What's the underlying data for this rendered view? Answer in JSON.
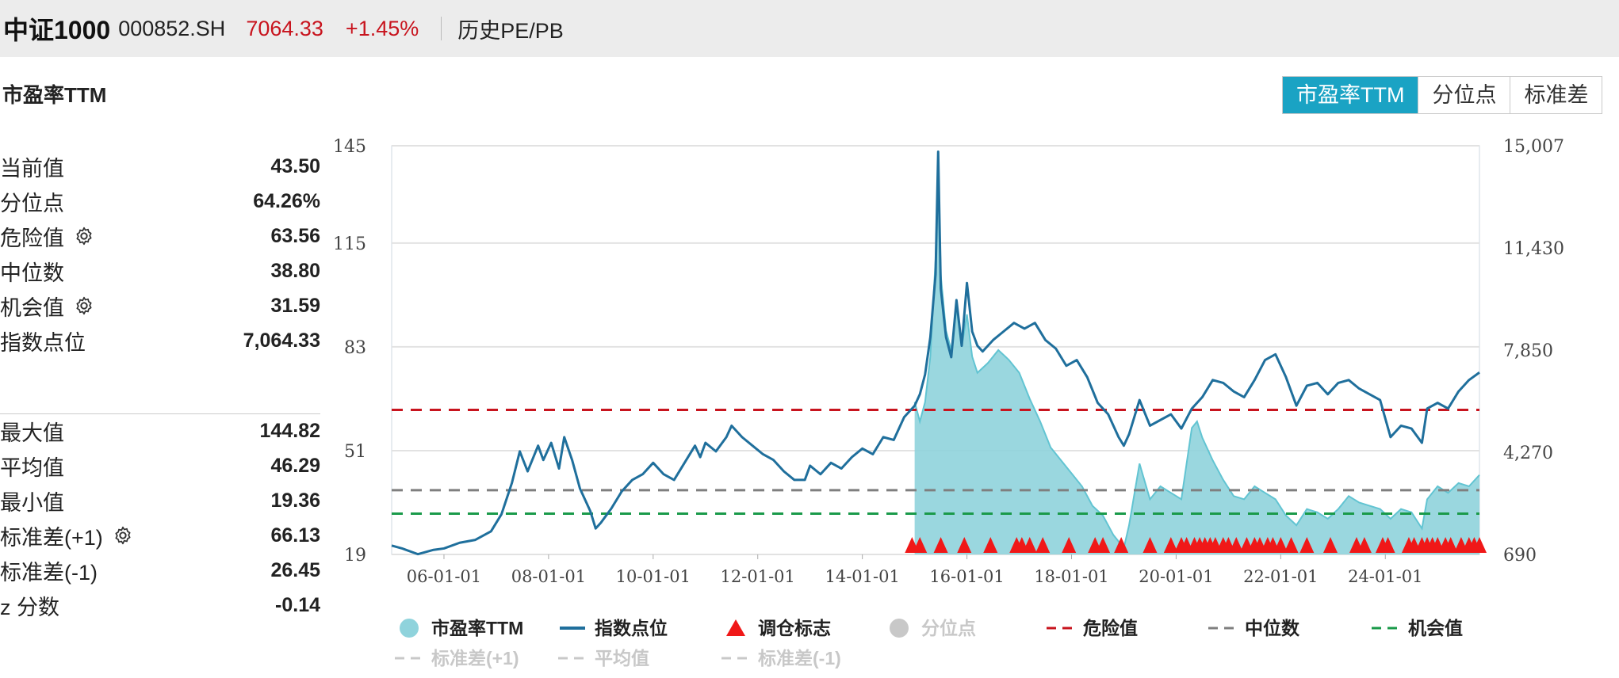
{
  "header": {
    "name": "中证1000",
    "code": "000852.SH",
    "price": "7064.33",
    "change_pct": "+1.45%",
    "subtitle": "历史PE/PB"
  },
  "section_title": "市盈率TTM",
  "tabs": [
    {
      "label": "市盈率TTM",
      "active": true
    },
    {
      "label": "分位点",
      "active": false
    },
    {
      "label": "标准差",
      "active": false
    }
  ],
  "stats_top": [
    {
      "label": "当前值",
      "value": "43.50",
      "gear": false
    },
    {
      "label": "分位点",
      "value": "64.26%",
      "gear": false
    },
    {
      "label": "危险值",
      "value": "63.56",
      "gear": true
    },
    {
      "label": "中位数",
      "value": "38.80",
      "gear": false
    },
    {
      "label": "机会值",
      "value": "31.59",
      "gear": true
    },
    {
      "label": "指数点位",
      "value": "7,064.33",
      "gear": false
    }
  ],
  "stats_bottom": [
    {
      "label": "最大值",
      "value": "144.82",
      "gear": false
    },
    {
      "label": "平均值",
      "value": "46.29",
      "gear": false
    },
    {
      "label": "最小值",
      "value": "19.36",
      "gear": false
    },
    {
      "label": "标准差(+1)",
      "value": "66.13",
      "gear": true
    },
    {
      "label": "标准差(-1)",
      "value": "26.45",
      "gear": false
    },
    {
      "label": "z 分数",
      "value": "-0.14",
      "gear": false
    }
  ],
  "colors": {
    "pe_fill": "#8fd3dc",
    "pe_line": "#62c4d2",
    "index_line": "#1f6f9c",
    "danger": "#c8141e",
    "median": "#7f7f7f",
    "opportunity": "#1a9a4a",
    "marker": "#f01818",
    "tab_active": "#1aa3c4",
    "disabled": "#c8c8c8"
  },
  "chart_data": {
    "type": "line",
    "left_axis": {
      "ticks": [
        "145",
        "115",
        "83",
        "51",
        "19"
      ],
      "ylim": [
        19,
        145
      ]
    },
    "right_axis": {
      "ticks": [
        "15,007",
        "11,430",
        "7,850",
        "4,270",
        "690"
      ],
      "ylim": [
        690,
        15007
      ]
    },
    "x_tick_labels": [
      "06-01-01",
      "08-01-01",
      "10-01-01",
      "12-01-01",
      "14-01-01",
      "16-01-01",
      "18-01-01",
      "20-01-01",
      "22-01-01",
      "24-01-01"
    ],
    "x_range": [
      2005.0,
      2025.8
    ],
    "reference_lines": [
      {
        "name": "危险值",
        "value": 63.56
      },
      {
        "name": "中位数",
        "value": 38.8
      },
      {
        "name": "机会值",
        "value": 31.59
      }
    ],
    "series": [
      {
        "name": "指数点位",
        "axis": "right",
        "points": [
          [
            2005.0,
            1000
          ],
          [
            2005.2,
            900
          ],
          [
            2005.5,
            700
          ],
          [
            2005.8,
            850
          ],
          [
            2006.0,
            900
          ],
          [
            2006.3,
            1100
          ],
          [
            2006.6,
            1200
          ],
          [
            2006.9,
            1500
          ],
          [
            2007.1,
            2100
          ],
          [
            2007.3,
            3200
          ],
          [
            2007.45,
            4300
          ],
          [
            2007.6,
            3600
          ],
          [
            2007.8,
            4500
          ],
          [
            2007.9,
            4000
          ],
          [
            2008.05,
            4600
          ],
          [
            2008.2,
            3700
          ],
          [
            2008.3,
            4800
          ],
          [
            2008.45,
            4000
          ],
          [
            2008.6,
            3000
          ],
          [
            2008.8,
            2200
          ],
          [
            2008.9,
            1600
          ],
          [
            2009.0,
            1800
          ],
          [
            2009.2,
            2300
          ],
          [
            2009.4,
            2900
          ],
          [
            2009.6,
            3300
          ],
          [
            2009.8,
            3500
          ],
          [
            2010.0,
            3900
          ],
          [
            2010.2,
            3500
          ],
          [
            2010.4,
            3300
          ],
          [
            2010.6,
            3900
          ],
          [
            2010.8,
            4500
          ],
          [
            2010.9,
            4100
          ],
          [
            2011.0,
            4600
          ],
          [
            2011.2,
            4300
          ],
          [
            2011.4,
            4800
          ],
          [
            2011.5,
            5200
          ],
          [
            2011.7,
            4800
          ],
          [
            2011.9,
            4500
          ],
          [
            2012.1,
            4200
          ],
          [
            2012.3,
            4000
          ],
          [
            2012.5,
            3600
          ],
          [
            2012.7,
            3300
          ],
          [
            2012.9,
            3300
          ],
          [
            2013.0,
            3800
          ],
          [
            2013.2,
            3500
          ],
          [
            2013.4,
            3900
          ],
          [
            2013.6,
            3700
          ],
          [
            2013.8,
            4100
          ],
          [
            2014.0,
            4400
          ],
          [
            2014.2,
            4200
          ],
          [
            2014.4,
            4800
          ],
          [
            2014.6,
            4700
          ],
          [
            2014.8,
            5500
          ],
          [
            2015.0,
            5900
          ],
          [
            2015.1,
            6300
          ],
          [
            2015.2,
            7000
          ],
          [
            2015.3,
            8300
          ],
          [
            2015.4,
            10500
          ],
          [
            2015.45,
            14800
          ],
          [
            2015.5,
            10000
          ],
          [
            2015.6,
            8300
          ],
          [
            2015.7,
            7600
          ],
          [
            2015.8,
            9600
          ],
          [
            2015.9,
            8000
          ],
          [
            2016.0,
            10200
          ],
          [
            2016.1,
            8500
          ],
          [
            2016.2,
            8000
          ],
          [
            2016.3,
            7800
          ],
          [
            2016.5,
            8200
          ],
          [
            2016.7,
            8500
          ],
          [
            2016.9,
            8800
          ],
          [
            2017.1,
            8600
          ],
          [
            2017.3,
            8800
          ],
          [
            2017.5,
            8200
          ],
          [
            2017.7,
            7900
          ],
          [
            2017.9,
            7300
          ],
          [
            2018.1,
            7500
          ],
          [
            2018.3,
            6900
          ],
          [
            2018.5,
            6000
          ],
          [
            2018.7,
            5600
          ],
          [
            2018.9,
            4800
          ],
          [
            2019.0,
            4500
          ],
          [
            2019.1,
            4900
          ],
          [
            2019.3,
            6100
          ],
          [
            2019.5,
            5200
          ],
          [
            2019.7,
            5400
          ],
          [
            2019.9,
            5600
          ],
          [
            2020.1,
            5100
          ],
          [
            2020.3,
            5800
          ],
          [
            2020.5,
            6200
          ],
          [
            2020.7,
            6800
          ],
          [
            2020.9,
            6700
          ],
          [
            2021.1,
            6400
          ],
          [
            2021.3,
            6200
          ],
          [
            2021.5,
            6800
          ],
          [
            2021.7,
            7500
          ],
          [
            2021.9,
            7700
          ],
          [
            2022.1,
            6900
          ],
          [
            2022.3,
            5900
          ],
          [
            2022.5,
            6600
          ],
          [
            2022.7,
            6700
          ],
          [
            2022.9,
            6300
          ],
          [
            2023.1,
            6700
          ],
          [
            2023.3,
            6800
          ],
          [
            2023.5,
            6500
          ],
          [
            2023.7,
            6300
          ],
          [
            2023.9,
            6100
          ],
          [
            2024.1,
            4800
          ],
          [
            2024.3,
            5200
          ],
          [
            2024.5,
            5100
          ],
          [
            2024.7,
            4600
          ],
          [
            2024.8,
            5800
          ],
          [
            2025.0,
            6000
          ],
          [
            2025.2,
            5800
          ],
          [
            2025.4,
            6400
          ],
          [
            2025.6,
            6800
          ],
          [
            2025.8,
            7064
          ]
        ]
      },
      {
        "name": "市盈率TTM",
        "axis": "left",
        "start": 2015.0,
        "points": [
          [
            2015.0,
            66
          ],
          [
            2015.1,
            60
          ],
          [
            2015.2,
            66
          ],
          [
            2015.3,
            80
          ],
          [
            2015.35,
            95
          ],
          [
            2015.4,
            110
          ],
          [
            2015.45,
            140
          ],
          [
            2015.5,
            105
          ],
          [
            2015.6,
            88
          ],
          [
            2015.7,
            82
          ],
          [
            2015.8,
            95
          ],
          [
            2015.9,
            83
          ],
          [
            2016.0,
            93
          ],
          [
            2016.1,
            80
          ],
          [
            2016.2,
            75
          ],
          [
            2016.4,
            78
          ],
          [
            2016.6,
            82
          ],
          [
            2016.8,
            79
          ],
          [
            2017.0,
            75
          ],
          [
            2017.2,
            67
          ],
          [
            2017.4,
            60
          ],
          [
            2017.6,
            52
          ],
          [
            2017.8,
            48
          ],
          [
            2018.0,
            44
          ],
          [
            2018.2,
            40
          ],
          [
            2018.4,
            34
          ],
          [
            2018.6,
            31
          ],
          [
            2018.8,
            25
          ],
          [
            2019.0,
            21
          ],
          [
            2019.1,
            28
          ],
          [
            2019.3,
            47
          ],
          [
            2019.5,
            36
          ],
          [
            2019.7,
            40
          ],
          [
            2019.9,
            38
          ],
          [
            2020.1,
            36
          ],
          [
            2020.3,
            58
          ],
          [
            2020.4,
            60
          ],
          [
            2020.5,
            55
          ],
          [
            2020.7,
            48
          ],
          [
            2020.9,
            42
          ],
          [
            2021.1,
            37
          ],
          [
            2021.3,
            36
          ],
          [
            2021.5,
            40
          ],
          [
            2021.7,
            38
          ],
          [
            2021.9,
            36
          ],
          [
            2022.1,
            31
          ],
          [
            2022.3,
            28
          ],
          [
            2022.5,
            33
          ],
          [
            2022.7,
            32
          ],
          [
            2022.9,
            30
          ],
          [
            2023.1,
            33
          ],
          [
            2023.3,
            37
          ],
          [
            2023.5,
            35
          ],
          [
            2023.7,
            34
          ],
          [
            2023.9,
            33
          ],
          [
            2024.1,
            30
          ],
          [
            2024.3,
            33
          ],
          [
            2024.5,
            32
          ],
          [
            2024.7,
            27
          ],
          [
            2024.8,
            36
          ],
          [
            2025.0,
            40
          ],
          [
            2025.2,
            38
          ],
          [
            2025.4,
            41
          ],
          [
            2025.6,
            40
          ],
          [
            2025.8,
            43.5
          ]
        ]
      }
    ],
    "rebalance_markers": [
      2014.95,
      2015.1,
      2015.5,
      2015.95,
      2016.45,
      2016.95,
      2017.05,
      2017.2,
      2017.45,
      2017.95,
      2018.45,
      2018.6,
      2018.95,
      2019.5,
      2019.9,
      2020.1,
      2020.2,
      2020.35,
      2020.45,
      2020.55,
      2020.65,
      2020.75,
      2020.9,
      2021.0,
      2021.15,
      2021.35,
      2021.5,
      2021.6,
      2021.75,
      2021.85,
      2022.0,
      2022.2,
      2022.5,
      2022.95,
      2023.45,
      2023.6,
      2023.95,
      2024.05,
      2024.45,
      2024.55,
      2024.7,
      2024.8,
      2024.9,
      2025.0,
      2025.15,
      2025.25,
      2025.45,
      2025.6,
      2025.7,
      2025.8
    ]
  },
  "legend": [
    {
      "label": "市盈率TTM",
      "icon": "circle",
      "enabled": true
    },
    {
      "label": "指数点位",
      "icon": "line",
      "enabled": true
    },
    {
      "label": "调仓标志",
      "icon": "triangle",
      "enabled": true
    },
    {
      "label": "分位点",
      "icon": "circle",
      "enabled": false
    },
    {
      "label": "危险值",
      "icon": "dash",
      "enabled": true
    },
    {
      "label": "中位数",
      "icon": "dash",
      "enabled": true
    },
    {
      "label": "机会值",
      "icon": "dash",
      "enabled": true
    },
    {
      "label": "标准差(+1)",
      "icon": "dash",
      "enabled": false
    },
    {
      "label": "平均值",
      "icon": "dash",
      "enabled": false
    },
    {
      "label": "标准差(-1)",
      "icon": "dash",
      "enabled": false
    }
  ]
}
